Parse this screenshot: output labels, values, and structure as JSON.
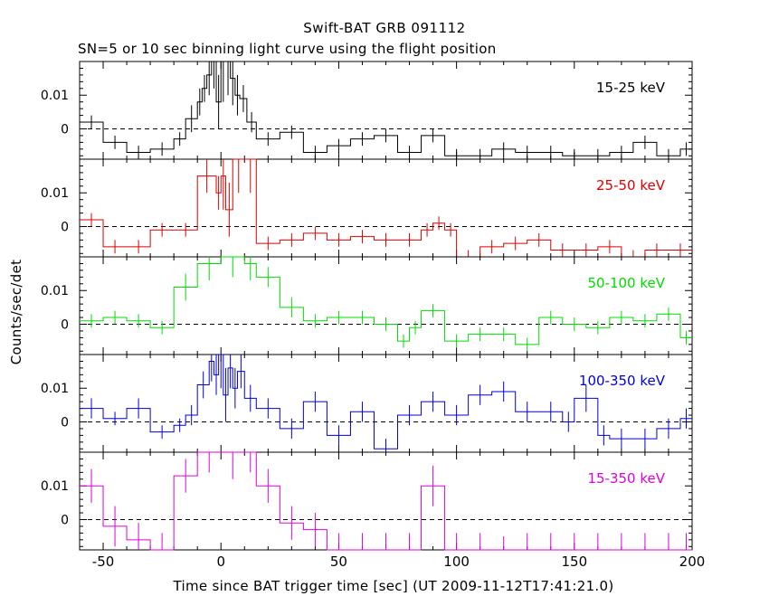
{
  "chart_data": {
    "type": "line",
    "title": "Swift-BAT GRB 091112",
    "subtitle": "SN=5 or 10 sec binning light curve using the flight position",
    "xlabel": "Time since BAT trigger time [sec] (UT 2009-11-12T17:41:21.0)",
    "ylabel": "Counts/sec/det",
    "xlim": [
      -60,
      200
    ],
    "ylim": [
      -0.009,
      0.02
    ],
    "xticks": [
      "-50",
      "0",
      "50",
      "100",
      "150",
      "200"
    ],
    "yticks": [
      "0.01",
      "0"
    ],
    "reference_line": "dashed at y = 0",
    "panels": [
      {
        "name": "15-25 keV",
        "color": "#000000",
        "bins": [
          {
            "x0": -60,
            "x1": -50,
            "y": 0.002,
            "err": 0.002
          },
          {
            "x0": -50,
            "x1": -40,
            "y": -0.004,
            "err": 0.002
          },
          {
            "x0": -40,
            "x1": -30,
            "y": -0.007,
            "err": 0.002
          },
          {
            "x0": -30,
            "x1": -20,
            "y": -0.006,
            "err": 0.002
          },
          {
            "x0": -20,
            "x1": -15,
            "y": -0.003,
            "err": 0.002
          },
          {
            "x0": -15,
            "x1": -10,
            "y": 0.003,
            "err": 0.004
          },
          {
            "x0": -10,
            "x1": -8,
            "y": 0.008,
            "err": 0.004
          },
          {
            "x0": -8,
            "x1": -6,
            "y": 0.012,
            "err": 0.004
          },
          {
            "x0": -6,
            "x1": -4,
            "y": 0.016,
            "err": 0.006
          },
          {
            "x0": -4,
            "x1": -2,
            "y": 0.02,
            "err": 0.008
          },
          {
            "x0": -2,
            "x1": 0,
            "y": 0.008,
            "err": 0.008
          },
          {
            "x0": 0,
            "x1": 2,
            "y": 0.02,
            "err": 0.012
          },
          {
            "x0": 2,
            "x1": 4,
            "y": 0.02,
            "err": 0.01
          },
          {
            "x0": 4,
            "x1": 6,
            "y": 0.015,
            "err": 0.008
          },
          {
            "x0": 6,
            "x1": 8,
            "y": 0.01,
            "err": 0.006
          },
          {
            "x0": 8,
            "x1": 11,
            "y": 0.009,
            "err": 0.004
          },
          {
            "x0": 11,
            "x1": 15,
            "y": 0.002,
            "err": 0.003
          },
          {
            "x0": 15,
            "x1": 25,
            "y": -0.003,
            "err": 0.002
          },
          {
            "x0": 25,
            "x1": 35,
            "y": -0.001,
            "err": 0.002
          },
          {
            "x0": 35,
            "x1": 45,
            "y": -0.007,
            "err": 0.002
          },
          {
            "x0": 45,
            "x1": 55,
            "y": -0.005,
            "err": 0.002
          },
          {
            "x0": 55,
            "x1": 65,
            "y": -0.003,
            "err": 0.002
          },
          {
            "x0": 65,
            "x1": 75,
            "y": -0.002,
            "err": 0.002
          },
          {
            "x0": 75,
            "x1": 85,
            "y": -0.007,
            "err": 0.002
          },
          {
            "x0": 85,
            "x1": 95,
            "y": -0.002,
            "err": 0.002
          },
          {
            "x0": 95,
            "x1": 105,
            "y": -0.008,
            "err": 0.002
          },
          {
            "x0": 105,
            "x1": 115,
            "y": -0.008,
            "err": 0.002
          },
          {
            "x0": 115,
            "x1": 125,
            "y": -0.006,
            "err": 0.002
          },
          {
            "x0": 125,
            "x1": 135,
            "y": -0.007,
            "err": 0.002
          },
          {
            "x0": 135,
            "x1": 145,
            "y": -0.007,
            "err": 0.002
          },
          {
            "x0": 145,
            "x1": 155,
            "y": -0.008,
            "err": 0.002
          },
          {
            "x0": 155,
            "x1": 165,
            "y": -0.008,
            "err": 0.002
          },
          {
            "x0": 165,
            "x1": 175,
            "y": -0.007,
            "err": 0.002
          },
          {
            "x0": 175,
            "x1": 185,
            "y": -0.004,
            "err": 0.002
          },
          {
            "x0": 185,
            "x1": 195,
            "y": -0.008,
            "err": 0.002
          },
          {
            "x0": 195,
            "x1": 200,
            "y": -0.006,
            "err": 0.002
          }
        ]
      },
      {
        "name": "25-50 keV",
        "color": "#dd0000",
        "bins": [
          {
            "x0": -60,
            "x1": -50,
            "y": 0.002,
            "err": 0.002
          },
          {
            "x0": -50,
            "x1": -40,
            "y": -0.006,
            "err": 0.002
          },
          {
            "x0": -40,
            "x1": -30,
            "y": -0.006,
            "err": 0.002
          },
          {
            "x0": -30,
            "x1": -20,
            "y": -0.001,
            "err": 0.002
          },
          {
            "x0": -20,
            "x1": -10,
            "y": -0.001,
            "err": 0.002
          },
          {
            "x0": -10,
            "x1": -2,
            "y": 0.015,
            "err": 0.005
          },
          {
            "x0": -2,
            "x1": 0,
            "y": 0.01,
            "err": 0.005
          },
          {
            "x0": 0,
            "x1": 2,
            "y": 0.015,
            "err": 0.01
          },
          {
            "x0": 2,
            "x1": 5,
            "y": 0.005,
            "err": 0.008
          },
          {
            "x0": 5,
            "x1": 10,
            "y": 0.02,
            "err": 0.01
          },
          {
            "x0": 10,
            "x1": 15,
            "y": 0.02,
            "err": 0.01
          },
          {
            "x0": 15,
            "x1": 25,
            "y": -0.005,
            "err": 0.002
          },
          {
            "x0": 25,
            "x1": 35,
            "y": -0.004,
            "err": 0.002
          },
          {
            "x0": 35,
            "x1": 45,
            "y": -0.002,
            "err": 0.002
          },
          {
            "x0": 45,
            "x1": 55,
            "y": -0.004,
            "err": 0.002
          },
          {
            "x0": 55,
            "x1": 65,
            "y": -0.003,
            "err": 0.002
          },
          {
            "x0": 65,
            "x1": 75,
            "y": -0.004,
            "err": 0.002
          },
          {
            "x0": 75,
            "x1": 85,
            "y": -0.004,
            "err": 0.002
          },
          {
            "x0": 85,
            "x1": 90,
            "y": -0.001,
            "err": 0.002
          },
          {
            "x0": 90,
            "x1": 95,
            "y": 0.001,
            "err": 0.002
          },
          {
            "x0": 95,
            "x1": 100,
            "y": -0.001,
            "err": 0.002
          },
          {
            "x0": 100,
            "x1": 110,
            "y": -0.009,
            "err": 0.002
          },
          {
            "x0": 110,
            "x1": 120,
            "y": -0.006,
            "err": 0.002
          },
          {
            "x0": 120,
            "x1": 130,
            "y": -0.005,
            "err": 0.002
          },
          {
            "x0": 130,
            "x1": 140,
            "y": -0.004,
            "err": 0.002
          },
          {
            "x0": 140,
            "x1": 150,
            "y": -0.007,
            "err": 0.002
          },
          {
            "x0": 150,
            "x1": 160,
            "y": -0.007,
            "err": 0.002
          },
          {
            "x0": 160,
            "x1": 170,
            "y": -0.006,
            "err": 0.002
          },
          {
            "x0": 170,
            "x1": 180,
            "y": -0.009,
            "err": 0.002
          },
          {
            "x0": 180,
            "x1": 190,
            "y": -0.007,
            "err": 0.002
          },
          {
            "x0": 190,
            "x1": 200,
            "y": -0.007,
            "err": 0.002
          }
        ]
      },
      {
        "name": "50-100 keV",
        "color": "#00dd00",
        "bins": [
          {
            "x0": -60,
            "x1": -50,
            "y": 0.001,
            "err": 0.002
          },
          {
            "x0": -50,
            "x1": -40,
            "y": 0.002,
            "err": 0.002
          },
          {
            "x0": -40,
            "x1": -30,
            "y": 0.001,
            "err": 0.002
          },
          {
            "x0": -30,
            "x1": -20,
            "y": -0.001,
            "err": 0.002
          },
          {
            "x0": -20,
            "x1": -10,
            "y": 0.011,
            "err": 0.004
          },
          {
            "x0": -10,
            "x1": 0,
            "y": 0.018,
            "err": 0.005
          },
          {
            "x0": 0,
            "x1": 10,
            "y": 0.02,
            "err": 0.006
          },
          {
            "x0": 10,
            "x1": 15,
            "y": 0.018,
            "err": 0.005
          },
          {
            "x0": 15,
            "x1": 25,
            "y": 0.014,
            "err": 0.003
          },
          {
            "x0": 25,
            "x1": 35,
            "y": 0.005,
            "err": 0.003
          },
          {
            "x0": 35,
            "x1": 45,
            "y": 0.001,
            "err": 0.002
          },
          {
            "x0": 45,
            "x1": 55,
            "y": 0.002,
            "err": 0.002
          },
          {
            "x0": 55,
            "x1": 65,
            "y": 0.002,
            "err": 0.002
          },
          {
            "x0": 65,
            "x1": 75,
            "y": 0.0,
            "err": 0.002
          },
          {
            "x0": 75,
            "x1": 80,
            "y": -0.005,
            "err": 0.002
          },
          {
            "x0": 80,
            "x1": 85,
            "y": -0.001,
            "err": 0.002
          },
          {
            "x0": 85,
            "x1": 95,
            "y": 0.004,
            "err": 0.002
          },
          {
            "x0": 95,
            "x1": 105,
            "y": -0.005,
            "err": 0.002
          },
          {
            "x0": 105,
            "x1": 115,
            "y": -0.003,
            "err": 0.002
          },
          {
            "x0": 115,
            "x1": 125,
            "y": -0.003,
            "err": 0.002
          },
          {
            "x0": 125,
            "x1": 135,
            "y": -0.006,
            "err": 0.002
          },
          {
            "x0": 135,
            "x1": 145,
            "y": 0.002,
            "err": 0.002
          },
          {
            "x0": 145,
            "x1": 155,
            "y": 0.0,
            "err": 0.002
          },
          {
            "x0": 155,
            "x1": 165,
            "y": -0.001,
            "err": 0.002
          },
          {
            "x0": 165,
            "x1": 175,
            "y": 0.002,
            "err": 0.002
          },
          {
            "x0": 175,
            "x1": 185,
            "y": 0.001,
            "err": 0.002
          },
          {
            "x0": 185,
            "x1": 195,
            "y": 0.003,
            "err": 0.002
          },
          {
            "x0": 195,
            "x1": 200,
            "y": -0.004,
            "err": 0.002
          }
        ]
      },
      {
        "name": "100-350 keV",
        "color": "#0000dd",
        "bins": [
          {
            "x0": -60,
            "x1": -50,
            "y": 0.004,
            "err": 0.003
          },
          {
            "x0": -50,
            "x1": -40,
            "y": 0.001,
            "err": 0.002
          },
          {
            "x0": -40,
            "x1": -30,
            "y": 0.004,
            "err": 0.003
          },
          {
            "x0": -30,
            "x1": -20,
            "y": -0.003,
            "err": 0.002
          },
          {
            "x0": -20,
            "x1": -15,
            "y": -0.001,
            "err": 0.002
          },
          {
            "x0": -15,
            "x1": -10,
            "y": 0.002,
            "err": 0.003
          },
          {
            "x0": -10,
            "x1": -5,
            "y": 0.011,
            "err": 0.004
          },
          {
            "x0": -5,
            "x1": -3,
            "y": 0.018,
            "err": 0.006
          },
          {
            "x0": -3,
            "x1": -1,
            "y": 0.014,
            "err": 0.006
          },
          {
            "x0": -1,
            "x1": 1,
            "y": 0.02,
            "err": 0.01
          },
          {
            "x0": 1,
            "x1": 3,
            "y": 0.008,
            "err": 0.008
          },
          {
            "x0": 3,
            "x1": 5,
            "y": 0.016,
            "err": 0.006
          },
          {
            "x0": 5,
            "x1": 7,
            "y": 0.01,
            "err": 0.006
          },
          {
            "x0": 7,
            "x1": 10,
            "y": 0.015,
            "err": 0.005
          },
          {
            "x0": 10,
            "x1": 15,
            "y": 0.007,
            "err": 0.004
          },
          {
            "x0": 15,
            "x1": 25,
            "y": 0.004,
            "err": 0.003
          },
          {
            "x0": 25,
            "x1": 35,
            "y": -0.002,
            "err": 0.003
          },
          {
            "x0": 35,
            "x1": 45,
            "y": 0.006,
            "err": 0.003
          },
          {
            "x0": 45,
            "x1": 55,
            "y": -0.004,
            "err": 0.003
          },
          {
            "x0": 55,
            "x1": 65,
            "y": 0.003,
            "err": 0.003
          },
          {
            "x0": 65,
            "x1": 75,
            "y": -0.008,
            "err": 0.003
          },
          {
            "x0": 75,
            "x1": 85,
            "y": 0.002,
            "err": 0.003
          },
          {
            "x0": 85,
            "x1": 95,
            "y": 0.006,
            "err": 0.003
          },
          {
            "x0": 95,
            "x1": 105,
            "y": 0.002,
            "err": 0.003
          },
          {
            "x0": 105,
            "x1": 115,
            "y": 0.008,
            "err": 0.003
          },
          {
            "x0": 115,
            "x1": 125,
            "y": 0.009,
            "err": 0.003
          },
          {
            "x0": 125,
            "x1": 135,
            "y": 0.003,
            "err": 0.003
          },
          {
            "x0": 135,
            "x1": 145,
            "y": 0.003,
            "err": 0.003
          },
          {
            "x0": 145,
            "x1": 150,
            "y": 0.0,
            "err": 0.003
          },
          {
            "x0": 150,
            "x1": 160,
            "y": 0.007,
            "err": 0.004
          },
          {
            "x0": 160,
            "x1": 165,
            "y": -0.004,
            "err": 0.003
          },
          {
            "x0": 165,
            "x1": 175,
            "y": -0.005,
            "err": 0.003
          },
          {
            "x0": 175,
            "x1": 185,
            "y": -0.005,
            "err": 0.003
          },
          {
            "x0": 185,
            "x1": 195,
            "y": -0.002,
            "err": 0.003
          },
          {
            "x0": 195,
            "x1": 200,
            "y": 0.001,
            "err": 0.003
          }
        ]
      },
      {
        "name": "15-350 keV",
        "color": "#dd00dd",
        "bins": [
          {
            "x0": -60,
            "x1": -50,
            "y": 0.01,
            "err": 0.005
          },
          {
            "x0": -50,
            "x1": -40,
            "y": -0.002,
            "err": 0.006
          },
          {
            "x0": -40,
            "x1": -30,
            "y": -0.006,
            "err": 0.005
          },
          {
            "x0": -30,
            "x1": -20,
            "y": -0.009,
            "err": 0.005
          },
          {
            "x0": -20,
            "x1": -10,
            "y": 0.013,
            "err": 0.005
          },
          {
            "x0": -10,
            "x1": 0,
            "y": 0.02,
            "err": 0.006
          },
          {
            "x0": 0,
            "x1": 10,
            "y": 0.02,
            "err": 0.008
          },
          {
            "x0": 10,
            "x1": 15,
            "y": 0.02,
            "err": 0.006
          },
          {
            "x0": 15,
            "x1": 25,
            "y": 0.01,
            "err": 0.005
          },
          {
            "x0": 25,
            "x1": 35,
            "y": -0.001,
            "err": 0.005
          },
          {
            "x0": 35,
            "x1": 45,
            "y": -0.003,
            "err": 0.005
          },
          {
            "x0": 45,
            "x1": 55,
            "y": -0.009,
            "err": 0.005
          },
          {
            "x0": 55,
            "x1": 65,
            "y": -0.009,
            "err": 0.005
          },
          {
            "x0": 65,
            "x1": 75,
            "y": -0.009,
            "err": 0.005
          },
          {
            "x0": 75,
            "x1": 85,
            "y": -0.009,
            "err": 0.005
          },
          {
            "x0": 85,
            "x1": 95,
            "y": 0.01,
            "err": 0.006
          },
          {
            "x0": 95,
            "x1": 105,
            "y": -0.009,
            "err": 0.005
          },
          {
            "x0": 105,
            "x1": 115,
            "y": -0.009,
            "err": 0.005
          },
          {
            "x0": 115,
            "x1": 125,
            "y": -0.009,
            "err": 0.004
          },
          {
            "x0": 125,
            "x1": 135,
            "y": -0.009,
            "err": 0.005
          },
          {
            "x0": 135,
            "x1": 145,
            "y": -0.009,
            "err": 0.005
          },
          {
            "x0": 145,
            "x1": 155,
            "y": -0.009,
            "err": 0.005
          },
          {
            "x0": 155,
            "x1": 165,
            "y": -0.009,
            "err": 0.005
          },
          {
            "x0": 165,
            "x1": 175,
            "y": -0.009,
            "err": 0.005
          },
          {
            "x0": 175,
            "x1": 185,
            "y": -0.009,
            "err": 0.005
          },
          {
            "x0": 185,
            "x1": 195,
            "y": -0.009,
            "err": 0.005
          },
          {
            "x0": 195,
            "x1": 200,
            "y": -0.009,
            "err": 0.005
          }
        ]
      }
    ]
  }
}
